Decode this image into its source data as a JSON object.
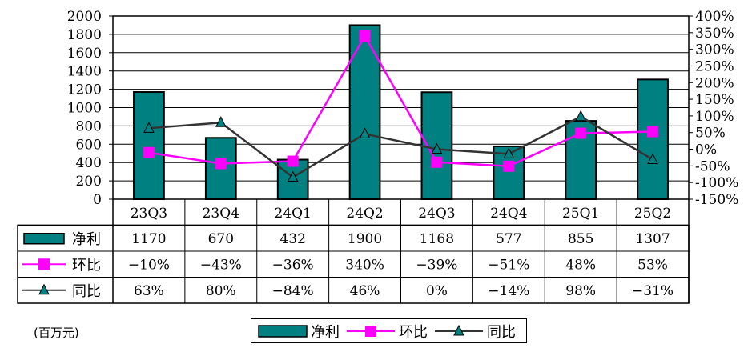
{
  "unit_label": "(百万元)",
  "colors": {
    "bar": "#008080",
    "huanbi": "#ff00ff",
    "tongbi": "#333333",
    "axis": "#000000"
  },
  "chart_data": {
    "type": "bar",
    "categories": [
      "23Q3",
      "23Q4",
      "24Q1",
      "24Q2",
      "24Q3",
      "24Q4",
      "25Q1",
      "25Q2"
    ],
    "series": [
      {
        "name": "净利",
        "type": "bar",
        "axis": "left",
        "values": [
          1170,
          670,
          432,
          1900,
          1168,
          577,
          855,
          1307
        ],
        "table_values": [
          "1170",
          "670",
          "432",
          "1900",
          "1168",
          "577",
          "855",
          "1307"
        ]
      },
      {
        "name": "环比",
        "type": "line",
        "axis": "right",
        "marker": "square",
        "values": [
          -10,
          -43,
          -36,
          340,
          -39,
          -51,
          48,
          53
        ],
        "table_values": [
          "−10%",
          "−43%",
          "−36%",
          "340%",
          "−39%",
          "−51%",
          "48%",
          "53%"
        ]
      },
      {
        "name": "同比",
        "type": "line",
        "axis": "right",
        "marker": "triangle",
        "values": [
          63,
          80,
          -84,
          46,
          0,
          -14,
          98,
          -31
        ],
        "table_values": [
          "63%",
          "80%",
          "−84%",
          "46%",
          "0%",
          "−14%",
          "98%",
          "−31%"
        ]
      }
    ],
    "y_left": {
      "min": 0,
      "max": 2000,
      "step": 200,
      "ticks": [
        "0",
        "200",
        "400",
        "600",
        "800",
        "1000",
        "1200",
        "1400",
        "1600",
        "1800",
        "2000"
      ]
    },
    "y_right": {
      "min": -150,
      "max": 400,
      "step": 50,
      "ticks": [
        "-150%",
        "-100%",
        "-50%",
        "0%",
        "50%",
        "100%",
        "150%",
        "200%",
        "250%",
        "300%",
        "350%",
        "400%"
      ]
    },
    "grid": true,
    "legend": [
      "净利",
      "环比",
      "同比"
    ],
    "legend_position": "bottom"
  }
}
